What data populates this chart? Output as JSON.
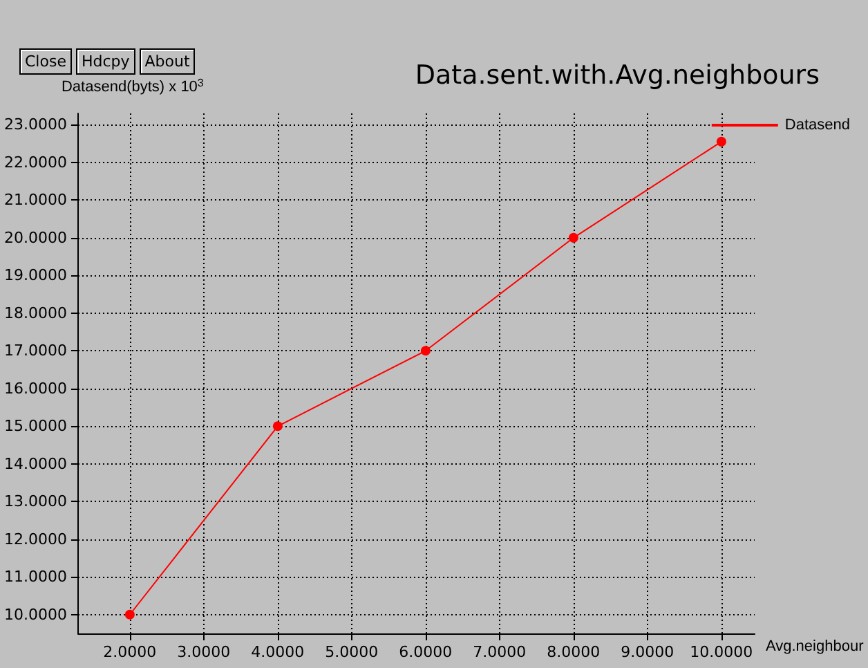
{
  "chart_data": {
    "type": "line",
    "title": "Data.sent.with.Avg.neighbours",
    "xlabel": "Avg.neighbour",
    "ylabel": "Datasend(byts) x 10$^{3}$",
    "annotations": [
      "Close",
      "Hdcpy",
      "About"
    ],
    "x": [
      2,
      4,
      6,
      8,
      10
    ],
    "series": [
      {
        "name": "Datasend",
        "color": "#ff0000",
        "values": [
          10,
          15,
          17,
          20,
          22.55
        ]
      }
    ],
    "xlim": [
      1.3,
      10.45
    ],
    "ylim": [
      9.5,
      23.3
    ],
    "xticks": [
      {
        "value": 2,
        "label": "2.0000"
      },
      {
        "value": 3,
        "label": "3.0000"
      },
      {
        "value": 4,
        "label": "4.0000"
      },
      {
        "value": 5,
        "label": "5.0000"
      },
      {
        "value": 6,
        "label": "6.0000"
      },
      {
        "value": 7,
        "label": "7.0000"
      },
      {
        "value": 8,
        "label": "8.0000"
      },
      {
        "value": 9,
        "label": "9.0000"
      },
      {
        "value": 10,
        "label": "10.0000"
      }
    ],
    "yticks": [
      {
        "value": 10,
        "label": "10.0000"
      },
      {
        "value": 11,
        "label": "11.0000"
      },
      {
        "value": 12,
        "label": "12.0000"
      },
      {
        "value": 13,
        "label": "13.0000"
      },
      {
        "value": 14,
        "label": "14.0000"
      },
      {
        "value": 15,
        "label": "15.0000"
      },
      {
        "value": 16,
        "label": "16.0000"
      },
      {
        "value": 17,
        "label": "17.0000"
      },
      {
        "value": 18,
        "label": "18.0000"
      },
      {
        "value": 19,
        "label": "19.0000"
      },
      {
        "value": 20,
        "label": "20.0000"
      },
      {
        "value": 21,
        "label": "21.0000"
      },
      {
        "value": 22,
        "label": "22.0000"
      },
      {
        "value": 23,
        "label": "23.0000"
      }
    ],
    "grid": true,
    "legend": "top right",
    "marker": "circle",
    "line_style": "solid"
  }
}
